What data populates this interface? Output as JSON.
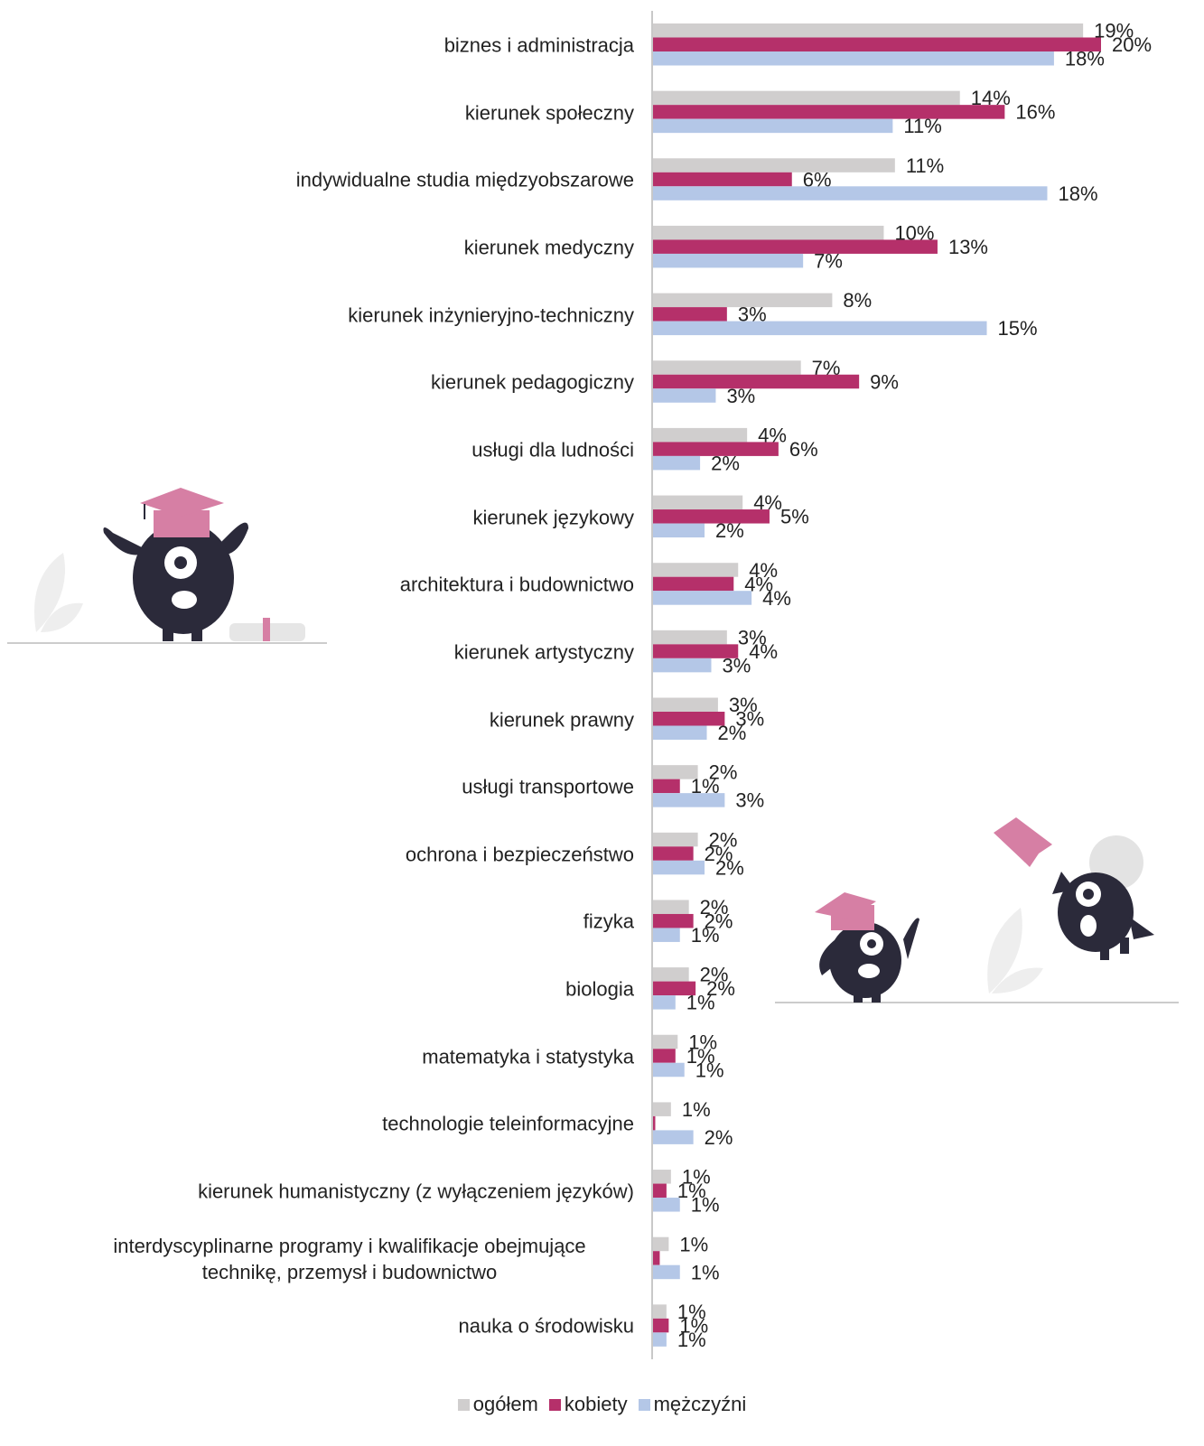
{
  "chart_data": {
    "type": "bar",
    "orientation": "horizontal",
    "categories": [
      "biznes i administracja",
      "kierunek społeczny",
      "indywidualne studia międzyobszarowe",
      "kierunek medyczny",
      "kierunek inżynieryjno-techniczny",
      "kierunek pedagogiczny",
      "usługi dla ludności",
      "kierunek językowy",
      "architektura i budownictwo",
      "kierunek artystyczny",
      "kierunek prawny",
      "usługi transportowe",
      "ochrona i bezpieczeństwo",
      "fizyka",
      "biologia",
      "matematyka i statystyka",
      "technologie teleinformacyjne",
      "kierunek humanistyczny (z wyłączeniem języków)",
      "interdyscyplinarne programy i kwalifikacje obejmujące\ntechnikę, przemysł i budownictwo",
      "nauka o środowisku"
    ],
    "series": [
      {
        "name": "ogółem",
        "color": "#d0cece",
        "values": [
          19.2,
          13.7,
          10.8,
          10.3,
          8.0,
          6.6,
          4.2,
          4.0,
          3.8,
          3.3,
          2.9,
          2.0,
          2.0,
          1.6,
          1.6,
          1.1,
          0.8,
          0.8,
          0.7,
          0.6
        ],
        "value_labels": [
          "19%",
          "14%",
          "11%",
          "10%",
          "8%",
          "7%",
          "4%",
          "4%",
          "4%",
          "3%",
          "3%",
          "2%",
          "2%",
          "2%",
          "2%",
          "1%",
          "1%",
          "1%",
          "1%",
          "1%"
        ]
      },
      {
        "name": "kobiety",
        "color": "#b5306a",
        "values": [
          20.0,
          15.7,
          6.2,
          12.7,
          3.3,
          9.2,
          5.6,
          5.2,
          3.6,
          3.8,
          3.2,
          1.2,
          1.8,
          1.8,
          1.9,
          1.0,
          0.1,
          0.6,
          0.3,
          0.7
        ],
        "value_labels": [
          "20%",
          "16%",
          "6%",
          "13%",
          "3%",
          "9%",
          "6%",
          "5%",
          "4%",
          "4%",
          "3%",
          "1%",
          "2%",
          "2%",
          "2%",
          "1%",
          null,
          "1%",
          null,
          "1%"
        ]
      },
      {
        "name": "mężczyźni",
        "color": "#b4c7e7",
        "values": [
          17.9,
          10.7,
          17.6,
          6.7,
          14.9,
          2.8,
          2.1,
          2.3,
          4.4,
          2.6,
          2.4,
          3.2,
          2.3,
          1.2,
          1.0,
          1.4,
          1.8,
          1.2,
          1.2,
          0.6
        ],
        "value_labels": [
          "18%",
          "11%",
          "18%",
          "7%",
          "15%",
          "3%",
          "2%",
          "2%",
          "4%",
          "3%",
          "2%",
          "3%",
          "2%",
          "1%",
          "1%",
          "1%",
          "2%",
          "1%",
          "1%",
          "1%"
        ]
      }
    ]
  }
}
